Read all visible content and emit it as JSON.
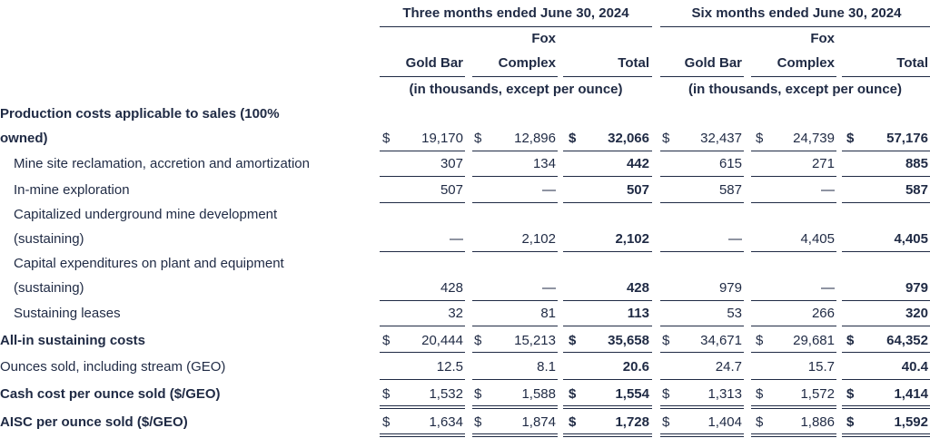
{
  "header": {
    "period_q": "Three months ended June 30, 2024",
    "period_s": "Six months ended June 30, 2024",
    "fox_top": "Fox",
    "gold_bar": "Gold Bar",
    "complex": "Complex",
    "total": "Total",
    "units": "(in thousands, except per ounce)"
  },
  "currency": "$",
  "rows": [
    {
      "label": [
        "Production costs applicable to sales (100%",
        "owned)"
      ],
      "bold": true,
      "dollar": true,
      "values": [
        "19,170",
        "12,896",
        "32,066",
        "32,437",
        "24,739",
        "57,176"
      ]
    },
    {
      "label": [
        "Mine site reclamation, accretion and amortization"
      ],
      "indent": true,
      "values": [
        "307",
        "134",
        "442",
        "615",
        "271",
        "885"
      ]
    },
    {
      "label": [
        "In-mine exploration"
      ],
      "indent": true,
      "values": [
        "507",
        "—",
        "507",
        "587",
        "—",
        "587"
      ]
    },
    {
      "label": [
        "Capitalized underground mine development",
        "(sustaining)"
      ],
      "indent": true,
      "values": [
        "—",
        "2,102",
        "2,102",
        "—",
        "4,405",
        "4,405"
      ]
    },
    {
      "label": [
        "Capital expenditures on plant and equipment",
        "(sustaining)"
      ],
      "indent": true,
      "values": [
        "428",
        "—",
        "428",
        "979",
        "—",
        "979"
      ]
    },
    {
      "label": [
        "Sustaining leases"
      ],
      "indent": true,
      "values": [
        "32",
        "81",
        "113",
        "53",
        "266",
        "320"
      ]
    },
    {
      "label": [
        "All-in sustaining costs"
      ],
      "bold": true,
      "dollar": true,
      "values": [
        "20,444",
        "15,213",
        "35,658",
        "34,671",
        "29,681",
        "64,352"
      ]
    },
    {
      "label": [
        "Ounces sold, including stream (GEO)"
      ],
      "values": [
        "12.5",
        "8.1",
        "20.6",
        "24.7",
        "15.7",
        "40.4"
      ]
    },
    {
      "label": [
        "Cash cost per ounce sold ($/GEO)"
      ],
      "bold": true,
      "dollar": true,
      "values": [
        "1,532",
        "1,588",
        "1,554",
        "1,313",
        "1,572",
        "1,414"
      ]
    },
    {
      "label": [
        "AISC per ounce sold ($/GEO)"
      ],
      "bold": true,
      "dollar": true,
      "values": [
        "1,634",
        "1,874",
        "1,728",
        "1,404",
        "1,886",
        "1,592"
      ]
    }
  ]
}
